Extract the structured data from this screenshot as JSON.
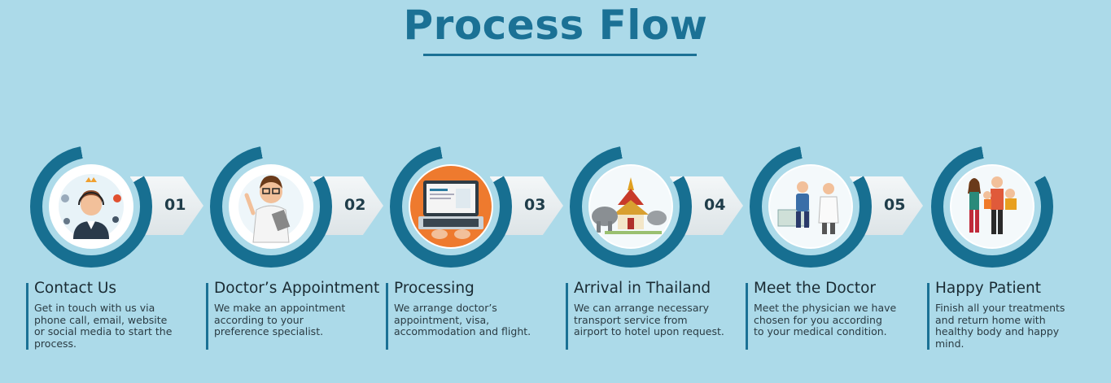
{
  "title": "Process Flow",
  "steps": [
    {
      "number": "01",
      "title": "Contact Us",
      "lines": [
        "Get in touch with us via",
        "phone call, email, website",
        "or social media to start the",
        "process."
      ],
      "icon": "call-center-agent-icon"
    },
    {
      "number": "02",
      "title": "Doctor’s Appointment",
      "lines": [
        "We make an appointment",
        "according to your",
        "preference specialist."
      ],
      "icon": "doctor-icon"
    },
    {
      "number": "03",
      "title": "Processing",
      "lines": [
        "We arrange doctor’s",
        "appointment, visa,",
        "accommodation and flight."
      ],
      "icon": "laptop-processing-icon"
    },
    {
      "number": "04",
      "title": "Arrival in Thailand",
      "lines": [
        "We can arrange necessary",
        "transport service from",
        "airport to hotel upon request."
      ],
      "icon": "thai-temple-elephant-icon"
    },
    {
      "number": "05",
      "title": "Meet the Doctor",
      "lines": [
        "Meet the physician we have",
        "chosen for you according",
        "to your medical condition."
      ],
      "icon": "doctor-patient-consultation-icon"
    },
    {
      "number": "",
      "title": "Happy Patient",
      "lines": [
        "Finish all your treatments",
        "and return home with",
        "healthy body and happy",
        "mind."
      ],
      "icon": "happy-family-icon"
    }
  ],
  "colors": {
    "background": "#acdae9",
    "accent": "#1b7195",
    "ring": "#176f91"
  }
}
